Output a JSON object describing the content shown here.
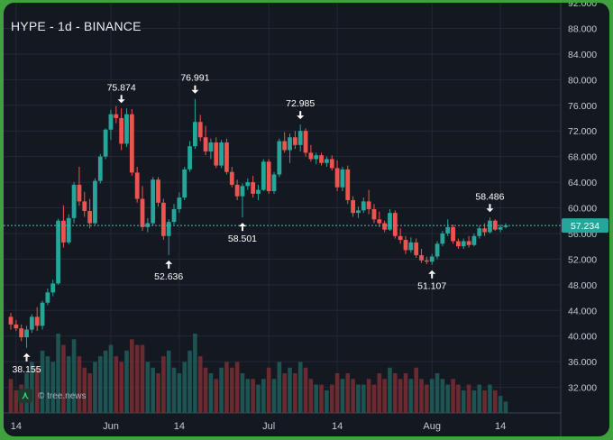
{
  "header": {
    "title": "HYPE - 1d - BINANCE"
  },
  "watermark": {
    "text": "© tree.news",
    "icon": "tree-news-logo-icon"
  },
  "colors": {
    "up": "#26a69a",
    "down": "#ef5350",
    "background": "#141821",
    "grid": "#232838",
    "text": "#c5cad3",
    "last_price_bg": "#26a69a"
  },
  "chart_data": {
    "type": "candlestick",
    "title": "HYPE - 1d - BINANCE",
    "symbol": "HYPE",
    "interval": "1d",
    "exchange": "BINANCE",
    "ylim": [
      28,
      92
    ],
    "y_ticks": [
      "92.000",
      "88.000",
      "84.000",
      "80.000",
      "76.000",
      "72.000",
      "68.000",
      "64.000",
      "60.000",
      "56.000",
      "52.000",
      "48.000",
      "44.000",
      "40.000",
      "36.000",
      "32.000"
    ],
    "x_ticks": [
      {
        "label": "14",
        "index": 1
      },
      {
        "label": "Jun",
        "index": 19
      },
      {
        "label": "14",
        "index": 32
      },
      {
        "label": "Jul",
        "index": 49
      },
      {
        "label": "14",
        "index": 62
      },
      {
        "label": "Aug",
        "index": 80
      },
      {
        "label": "14",
        "index": 93
      }
    ],
    "last_price": "57.234",
    "last_price_value": 57.234,
    "annotations": [
      {
        "label": "38.155",
        "index": 3,
        "value": 38.155,
        "type": "low"
      },
      {
        "label": "75.874",
        "index": 21,
        "value": 75.874,
        "type": "high"
      },
      {
        "label": "52.636",
        "index": 30,
        "value": 52.636,
        "type": "low"
      },
      {
        "label": "76.991",
        "index": 35,
        "value": 76.991,
        "type": "high"
      },
      {
        "label": "58.501",
        "index": 44,
        "value": 58.501,
        "type": "low"
      },
      {
        "label": "72.985",
        "index": 55,
        "value": 72.985,
        "type": "high"
      },
      {
        "label": "51.107",
        "index": 80,
        "value": 51.107,
        "type": "low"
      },
      {
        "label": "58.486",
        "index": 91,
        "value": 58.486,
        "type": "high"
      }
    ],
    "ohlcv": [
      [
        43.0,
        43.6,
        41.0,
        41.8,
        6
      ],
      [
        41.8,
        42.5,
        40.8,
        41.2,
        4
      ],
      [
        41.2,
        41.8,
        39.2,
        39.8,
        5
      ],
      [
        39.8,
        41.6,
        38.155,
        41.0,
        7
      ],
      [
        41.0,
        43.4,
        40.5,
        43.0,
        9
      ],
      [
        43.0,
        44.5,
        40.8,
        41.6,
        8
      ],
      [
        41.6,
        45.5,
        41.0,
        45.2,
        11
      ],
      [
        45.2,
        47.4,
        44.8,
        46.8,
        10
      ],
      [
        46.8,
        48.8,
        46.2,
        48.2,
        9
      ],
      [
        48.2,
        58.3,
        48.0,
        58.0,
        14
      ],
      [
        58.0,
        60.4,
        53.8,
        54.6,
        12
      ],
      [
        54.6,
        59.0,
        54.3,
        58.4,
        10
      ],
      [
        58.4,
        64.0,
        57.6,
        63.6,
        13
      ],
      [
        63.6,
        66.4,
        60.3,
        61.0,
        10
      ],
      [
        61.0,
        62.5,
        58.6,
        59.5,
        8
      ],
      [
        59.5,
        61.4,
        56.8,
        57.6,
        7
      ],
      [
        57.6,
        64.6,
        57.4,
        64.2,
        9
      ],
      [
        64.2,
        68.4,
        63.8,
        68.0,
        10
      ],
      [
        68.0,
        72.4,
        67.6,
        72.2,
        11
      ],
      [
        72.2,
        75.3,
        70.6,
        74.6,
        12
      ],
      [
        74.6,
        75.874,
        73.2,
        74.0,
        10
      ],
      [
        74.0,
        75.5,
        69.0,
        70.0,
        9
      ],
      [
        70.0,
        75.5,
        69.5,
        74.6,
        11
      ],
      [
        74.6,
        75.4,
        65.0,
        65.5,
        13
      ],
      [
        65.5,
        66.4,
        60.8,
        61.4,
        12
      ],
      [
        61.4,
        63.4,
        56.4,
        57.0,
        12
      ],
      [
        57.0,
        58.4,
        56.2,
        57.6,
        9
      ],
      [
        57.6,
        64.8,
        57.2,
        64.4,
        8
      ],
      [
        64.4,
        64.8,
        60.2,
        60.8,
        7
      ],
      [
        60.8,
        61.4,
        55.0,
        55.6,
        10
      ],
      [
        55.6,
        58.2,
        52.636,
        57.8,
        11
      ],
      [
        57.8,
        60.6,
        57.4,
        59.8,
        8
      ],
      [
        59.8,
        62.4,
        59.2,
        61.6,
        7
      ],
      [
        61.6,
        66.4,
        61.2,
        66.0,
        9
      ],
      [
        66.0,
        70.4,
        65.6,
        69.6,
        11
      ],
      [
        69.6,
        76.991,
        69.2,
        73.4,
        14
      ],
      [
        73.4,
        74.5,
        70.4,
        71.0,
        10
      ],
      [
        71.0,
        72.8,
        68.2,
        68.8,
        8
      ],
      [
        68.8,
        70.8,
        67.6,
        70.2,
        7
      ],
      [
        70.2,
        71.0,
        66.2,
        66.6,
        6
      ],
      [
        66.6,
        70.6,
        66.2,
        70.2,
        8
      ],
      [
        70.2,
        70.8,
        65.2,
        65.6,
        9
      ],
      [
        65.6,
        66.4,
        63.2,
        63.6,
        8
      ],
      [
        63.6,
        64.4,
        61.2,
        61.8,
        9
      ],
      [
        61.8,
        63.8,
        58.501,
        63.4,
        7
      ],
      [
        63.4,
        64.6,
        62.8,
        64.0,
        6
      ],
      [
        64.0,
        65.0,
        61.6,
        62.2,
        6
      ],
      [
        62.2,
        63.6,
        61.2,
        62.8,
        5
      ],
      [
        62.8,
        67.6,
        62.6,
        67.2,
        6
      ],
      [
        67.2,
        67.6,
        62.2,
        62.6,
        8
      ],
      [
        62.6,
        65.6,
        62.2,
        65.2,
        6
      ],
      [
        65.2,
        70.8,
        64.8,
        70.4,
        9
      ],
      [
        70.4,
        71.8,
        68.6,
        69.0,
        7
      ],
      [
        69.0,
        71.6,
        67.0,
        71.0,
        8
      ],
      [
        71.0,
        72.0,
        69.2,
        69.8,
        7
      ],
      [
        69.8,
        72.985,
        68.8,
        72.0,
        9
      ],
      [
        72.0,
        72.4,
        68.0,
        68.6,
        8
      ],
      [
        68.6,
        69.8,
        67.2,
        67.6,
        6
      ],
      [
        67.6,
        68.6,
        66.8,
        68.2,
        5
      ],
      [
        68.2,
        68.6,
        66.6,
        67.0,
        5
      ],
      [
        67.0,
        68.0,
        66.4,
        67.6,
        4
      ],
      [
        67.6,
        68.2,
        65.8,
        66.2,
        5
      ],
      [
        66.2,
        67.4,
        62.6,
        63.2,
        7
      ],
      [
        63.2,
        66.4,
        62.6,
        66.0,
        6
      ],
      [
        66.0,
        66.6,
        60.6,
        61.2,
        7
      ],
      [
        61.2,
        61.8,
        58.6,
        59.2,
        6
      ],
      [
        59.2,
        60.2,
        58.4,
        59.6,
        5
      ],
      [
        59.6,
        61.6,
        59.2,
        61.0,
        5
      ],
      [
        61.0,
        62.8,
        59.0,
        59.8,
        6
      ],
      [
        59.8,
        60.6,
        57.6,
        58.2,
        5
      ],
      [
        58.2,
        59.4,
        57.0,
        57.6,
        7
      ],
      [
        57.6,
        58.0,
        56.2,
        56.6,
        6
      ],
      [
        56.6,
        59.8,
        56.4,
        59.2,
        8
      ],
      [
        59.2,
        59.6,
        55.2,
        55.6,
        7
      ],
      [
        55.6,
        56.8,
        54.4,
        55.0,
        6
      ],
      [
        55.0,
        55.6,
        52.8,
        53.4,
        7
      ],
      [
        53.4,
        55.4,
        53.0,
        54.6,
        6
      ],
      [
        54.6,
        55.2,
        52.2,
        52.6,
        8
      ],
      [
        52.6,
        53.6,
        51.4,
        51.8,
        6
      ],
      [
        51.8,
        52.4,
        51.2,
        51.6,
        5
      ],
      [
        51.6,
        52.8,
        51.107,
        52.4,
        6
      ],
      [
        52.4,
        54.8,
        52.0,
        54.4,
        7
      ],
      [
        54.4,
        56.4,
        54.0,
        56.0,
        6
      ],
      [
        56.0,
        58.2,
        55.6,
        57.0,
        5
      ],
      [
        57.0,
        57.4,
        54.4,
        54.8,
        6
      ],
      [
        54.8,
        55.2,
        53.6,
        54.0,
        5
      ],
      [
        54.0,
        55.2,
        53.6,
        54.8,
        4
      ],
      [
        54.8,
        55.6,
        53.8,
        54.2,
        5
      ],
      [
        54.2,
        56.0,
        54.0,
        55.6,
        4
      ],
      [
        55.6,
        57.2,
        55.2,
        56.8,
        5
      ],
      [
        56.8,
        57.6,
        55.6,
        56.2,
        4
      ],
      [
        56.2,
        58.486,
        56.0,
        58.0,
        5
      ],
      [
        58.0,
        58.2,
        56.4,
        56.6,
        4
      ],
      [
        56.6,
        57.4,
        56.2,
        57.0,
        3
      ],
      [
        57.0,
        57.6,
        56.8,
        57.234,
        2
      ]
    ]
  }
}
